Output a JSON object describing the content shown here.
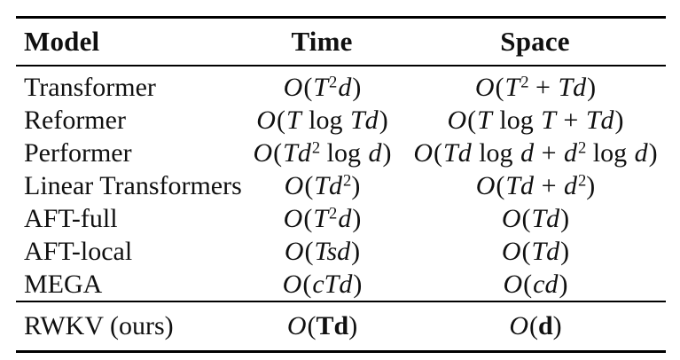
{
  "colors": {
    "background": "#ffffff",
    "text": "#101010",
    "rule": "#000000"
  },
  "table": {
    "columns": [
      {
        "label": "Model",
        "align": "left"
      },
      {
        "label": "Time",
        "align": "center"
      },
      {
        "label": "Space",
        "align": "center"
      }
    ],
    "rows": [
      {
        "model": "Transformer",
        "time": {
          "text": "O(T²d)",
          "html": "<i>O</i>(<i>T</i><sup>2</sup><i>d</i>)"
        },
        "space": {
          "text": "O(T² + Td)",
          "html": "<i>O</i>(<i>T</i><sup>2</sup> + <i>Td</i>)"
        }
      },
      {
        "model": "Reformer",
        "time": {
          "text": "O(T log Td)",
          "html": "<i>O</i>(<i>T</i> log <i>Td</i>)"
        },
        "space": {
          "text": "O(T log T + Td)",
          "html": "<i>O</i>(<i>T</i> log <i>T</i> + <i>Td</i>)"
        }
      },
      {
        "model": "Performer",
        "time": {
          "text": "O(Td² log d)",
          "html": "<i>O</i>(<i>Td</i><sup>2</sup> log <i>d</i>)"
        },
        "space": {
          "text": "O(Td log d + d² log d)",
          "html": "<i>O</i>(<i>Td</i> log <i>d</i> + <i>d</i><sup>2</sup> log <i>d</i>)"
        }
      },
      {
        "model": "Linear Transformers",
        "time": {
          "text": "O(Td²)",
          "html": "<i>O</i>(<i>Td</i><sup>2</sup>)"
        },
        "space": {
          "text": "O(Td + d²)",
          "html": "<i>O</i>(<i>Td</i> + <i>d</i><sup>2</sup>)"
        }
      },
      {
        "model": "AFT-full",
        "time": {
          "text": "O(T²d)",
          "html": "<i>O</i>(<i>T</i><sup>2</sup><i>d</i>)"
        },
        "space": {
          "text": "O(Td)",
          "html": "<i>O</i>(<i>Td</i>)"
        }
      },
      {
        "model": "AFT-local",
        "time": {
          "text": "O(Tsd)",
          "html": "<i>O</i>(<i>Tsd</i>)"
        },
        "space": {
          "text": "O(Td)",
          "html": "<i>O</i>(<i>Td</i>)"
        }
      },
      {
        "model": "MEGA",
        "time": {
          "text": "O(cTd)",
          "html": "<i>O</i>(<i>cTd</i>)"
        },
        "space": {
          "text": "O(cd)",
          "html": "<i>O</i>(<i>cd</i>)"
        }
      }
    ],
    "highlight_row": {
      "model": "RWKV (ours)",
      "time": {
        "text": "O(Td)",
        "html": "<i>O</i>(<b>Td</b>)"
      },
      "space": {
        "text": "O(d)",
        "html": "<i>O</i>(<b>d</b>)"
      }
    }
  }
}
